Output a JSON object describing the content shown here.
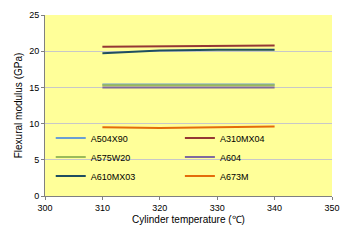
{
  "chart_data": {
    "type": "line",
    "x_label": "Cylinder temperature (℃)",
    "y_label": "Flexural modulus (GPa)",
    "x": [
      310,
      320,
      330,
      340
    ],
    "series": [
      {
        "name": "A504X90",
        "color": "#6a9fd4",
        "values": [
          15.4,
          15.4,
          15.4,
          15.4
        ]
      },
      {
        "name": "A310MX04",
        "color": "#953735",
        "values": [
          20.6,
          20.7,
          20.7,
          20.8
        ]
      },
      {
        "name": "A575W20",
        "color": "#9bbb59",
        "values": [
          15.3,
          15.3,
          15.3,
          15.3
        ]
      },
      {
        "name": "A604",
        "color": "#7f6a9f",
        "values": [
          15.0,
          15.0,
          15.0,
          15.0
        ]
      },
      {
        "name": "A610MX03",
        "color": "#1f4e60",
        "values": [
          19.7,
          20.1,
          20.2,
          20.2
        ]
      },
      {
        "name": "A673M",
        "color": "#e46c0a",
        "values": [
          9.5,
          9.4,
          9.5,
          9.6
        ]
      }
    ],
    "xlim": [
      300,
      350
    ],
    "xticks": [
      300,
      310,
      320,
      330,
      340,
      350
    ],
    "ylim": [
      0,
      25
    ],
    "yticks": [
      0,
      5,
      10,
      15,
      20,
      25
    ],
    "grid": true,
    "legend": "lower left"
  }
}
